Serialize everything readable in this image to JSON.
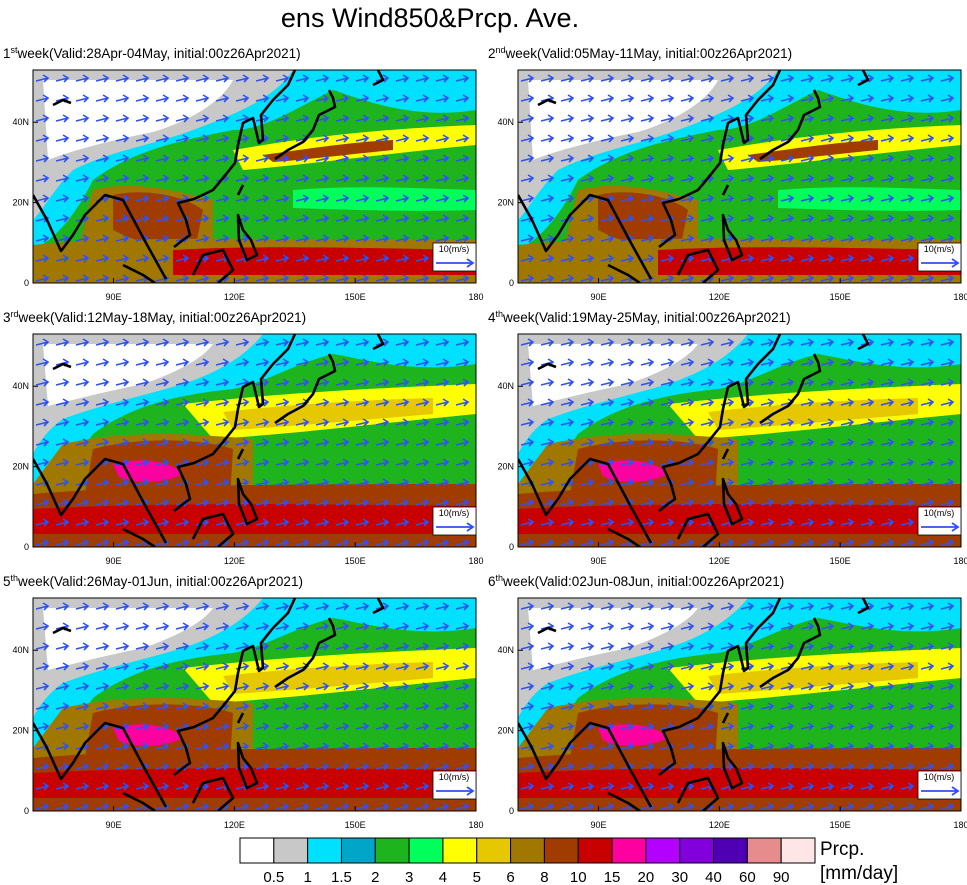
{
  "title": "ens Wind850&Prcp. Ave.",
  "panels": [
    {
      "ordinal": "1",
      "suffix": "st",
      "label": "week(Valid:28Apr-04May, initial:00z26Apr2021)"
    },
    {
      "ordinal": "2",
      "suffix": "nd",
      "label": "week(Valid:05May-11May, initial:00z26Apr2021)"
    },
    {
      "ordinal": "3",
      "suffix": "rd",
      "label": "week(Valid:12May-18May, initial:00z26Apr2021)"
    },
    {
      "ordinal": "4",
      "suffix": "th",
      "label": "week(Valid:19May-25May, initial:00z26Apr2021)"
    },
    {
      "ordinal": "5",
      "suffix": "th",
      "label": "week(Valid:26May-01Jun, initial:00z26Apr2021)"
    },
    {
      "ordinal": "6",
      "suffix": "th",
      "label": "week(Valid:02Jun-08Jun, initial:00z26Apr2021)"
    }
  ],
  "lon_range": [
    70,
    180
  ],
  "lat_range": [
    0,
    53
  ],
  "lon_ticks": [
    {
      "value": 90,
      "label": "90E"
    },
    {
      "value": 120,
      "label": "120E"
    },
    {
      "value": 150,
      "label": "150E"
    },
    180
  ],
  "lat_ticks": [
    0,
    {
      "value": 20,
      "label": "20N"
    },
    {
      "value": 40,
      "label": "40N"
    }
  ],
  "reference_vector": "10(m/s)",
  "colorbar": {
    "title": [
      "Prcp.",
      "[mm/day]"
    ],
    "colors": [
      "#ffffff",
      "#c8c8c8",
      "#00e1ff",
      "#00a5c8",
      "#1eb41e",
      "#00ff5a",
      "#ffff00",
      "#e6c800",
      "#a07800",
      "#a03c00",
      "#c80000",
      "#ff00a0",
      "#b400ff",
      "#8200dc",
      "#5000b4",
      "#e68c8c",
      "#ffe6e6"
    ],
    "labels": [
      "0.5",
      "1",
      "1.5",
      "2",
      "3",
      "4",
      "5",
      "6",
      "8",
      "10",
      "15",
      "20",
      "30",
      "40",
      "60",
      "90"
    ]
  }
}
